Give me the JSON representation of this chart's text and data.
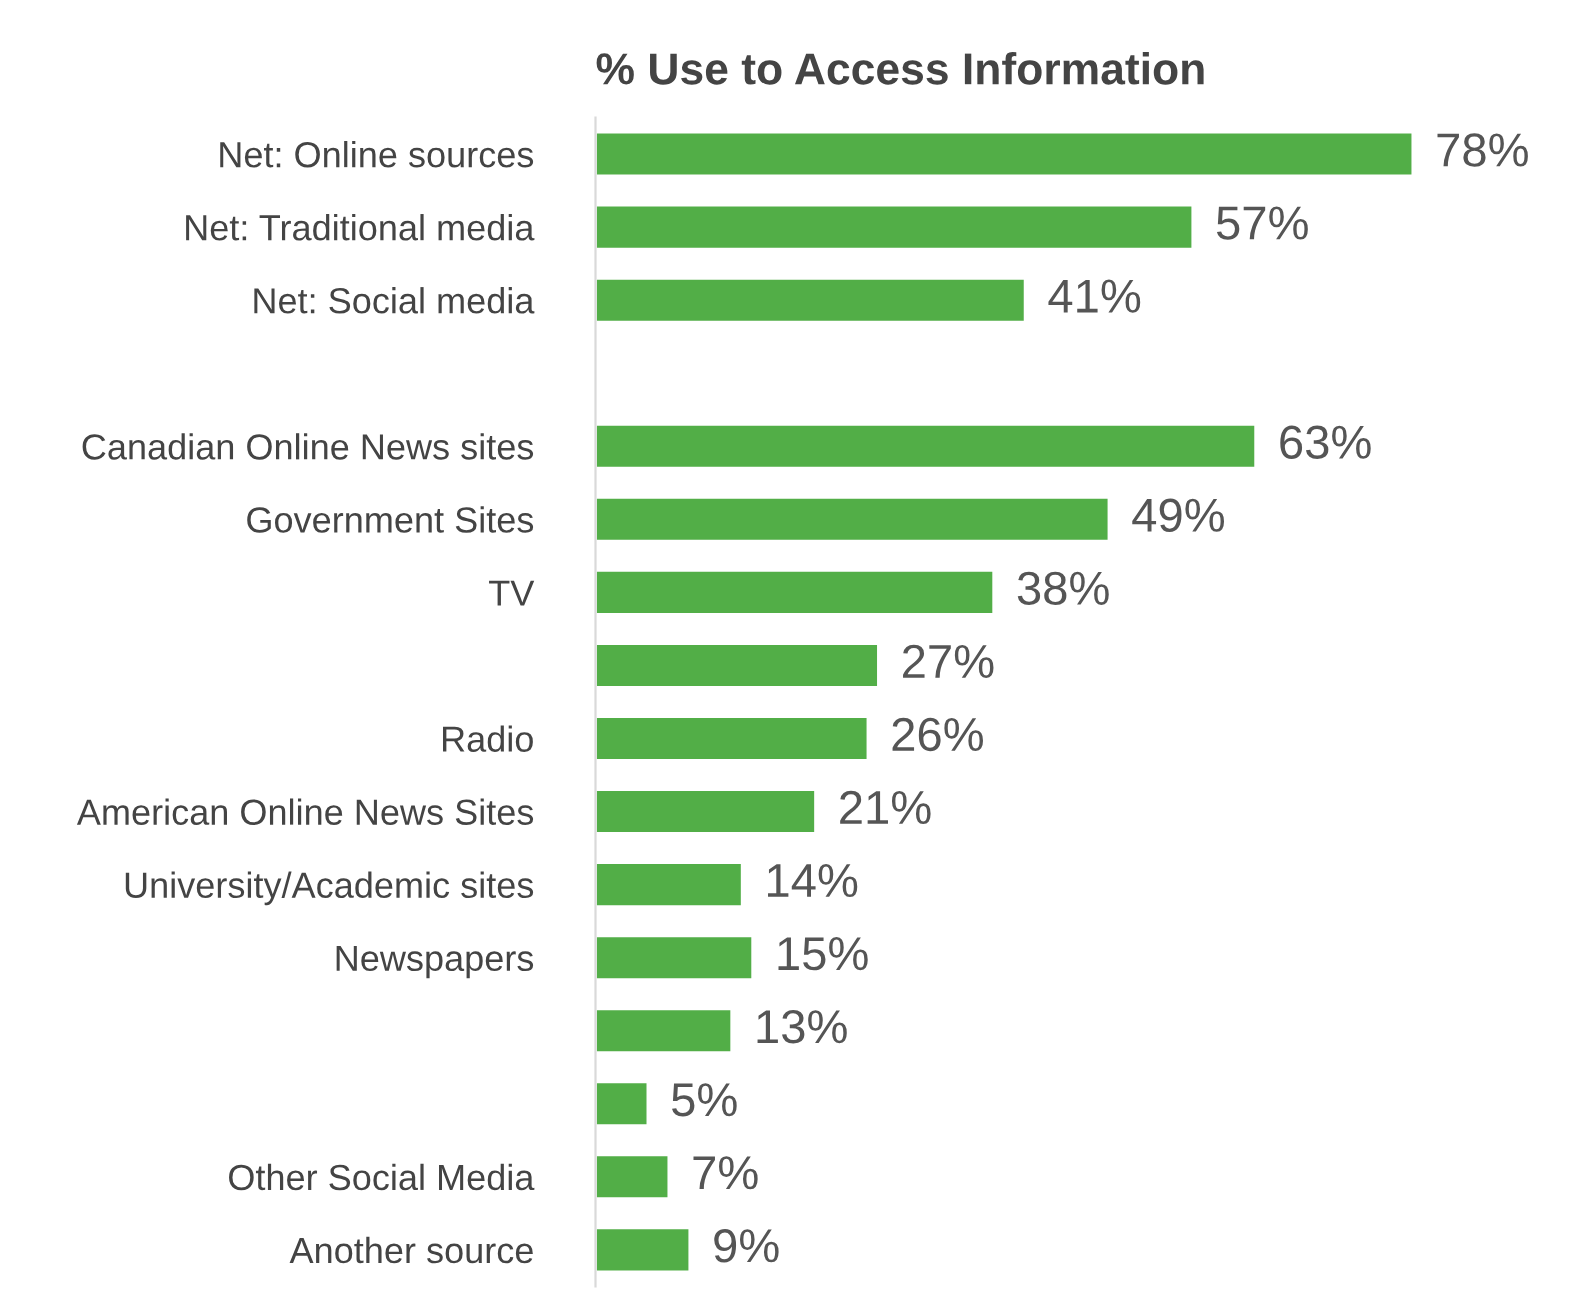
{
  "chart_data": {
    "type": "bar",
    "orientation": "horizontal",
    "title": "% Use to Access Information",
    "categories": [
      "Net: Online sources",
      "Net: Traditional media",
      "Net: Social media",
      null,
      "Canadian Online News sites",
      "Government Sites",
      "TV",
      null,
      "Radio",
      "American Online News Sites",
      "University/Academic sites",
      "Newspapers",
      null,
      null,
      "Other Social Media",
      "Another source"
    ],
    "values": [
      78,
      57,
      41,
      null,
      63,
      49,
      38,
      27,
      26,
      21,
      14,
      15,
      13,
      5,
      7,
      9
    ],
    "value_labels": [
      "78%",
      "57%",
      "41%",
      null,
      "63%",
      "49%",
      "38%",
      "27%",
      "26%",
      "21%",
      "14%",
      "15%",
      "13%",
      "5%",
      "7%",
      "9%"
    ],
    "color": "#52ae47"
  }
}
